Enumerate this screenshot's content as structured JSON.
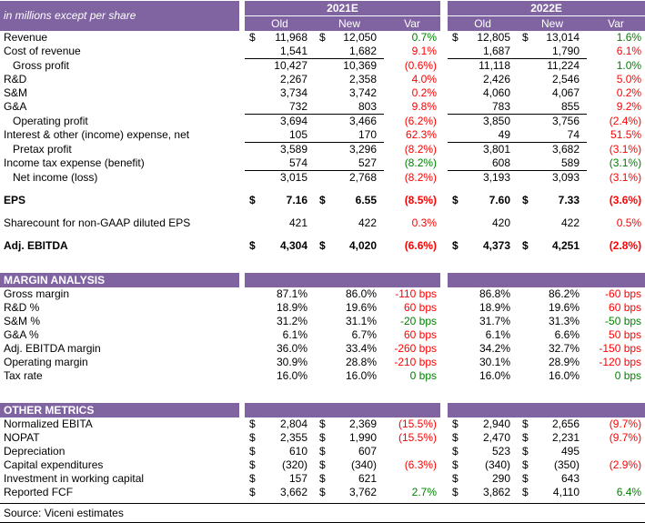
{
  "meta": {
    "units_label": "in millions except per share",
    "currency_symbol": "$",
    "source": "Source: Viceni estimates"
  },
  "columns": {
    "group1_label": "2021E",
    "group2_label": "2022E",
    "sub": [
      "Old",
      "New",
      "Var"
    ]
  },
  "colors": {
    "header_purple": "#8064A2",
    "positive_green": "#008000",
    "negative_red": "#FF0000"
  },
  "sections": [
    {
      "title": null,
      "rows": [
        {
          "label": "Revenue",
          "dollar": true,
          "g1": {
            "old": "11,968",
            "new": "12,050",
            "var": "0.7%",
            "var_color": "green"
          },
          "g2": {
            "old": "12,805",
            "new": "13,014",
            "var": "1.6%",
            "var_color": "green"
          }
        },
        {
          "label": "Cost of revenue",
          "underline": true,
          "g1": {
            "old": "1,541",
            "new": "1,682",
            "var": "9.1%",
            "var_color": "red"
          },
          "g2": {
            "old": "1,687",
            "new": "1,790",
            "var": "6.1%",
            "var_color": "red"
          }
        },
        {
          "label": "Gross profit",
          "indent": true,
          "g1": {
            "old": "10,427",
            "new": "10,369",
            "var": "(0.6%)",
            "var_color": "red"
          },
          "g2": {
            "old": "11,118",
            "new": "11,224",
            "var": "1.0%",
            "var_color": "green"
          }
        },
        {
          "label": "R&D",
          "g1": {
            "old": "2,267",
            "new": "2,358",
            "var": "4.0%",
            "var_color": "red"
          },
          "g2": {
            "old": "2,426",
            "new": "2,546",
            "var": "5.0%",
            "var_color": "red"
          }
        },
        {
          "label": "S&M",
          "g1": {
            "old": "3,734",
            "new": "3,742",
            "var": "0.2%",
            "var_color": "red"
          },
          "g2": {
            "old": "4,060",
            "new": "4,067",
            "var": "0.2%",
            "var_color": "red"
          }
        },
        {
          "label": "G&A",
          "underline": true,
          "g1": {
            "old": "732",
            "new": "803",
            "var": "9.8%",
            "var_color": "red"
          },
          "g2": {
            "old": "783",
            "new": "855",
            "var": "9.2%",
            "var_color": "red"
          }
        },
        {
          "label": "Operating profit",
          "indent": true,
          "g1": {
            "old": "3,694",
            "new": "3,466",
            "var": "(6.2%)",
            "var_color": "red"
          },
          "g2": {
            "old": "3,850",
            "new": "3,756",
            "var": "(2.4%)",
            "var_color": "red"
          }
        },
        {
          "label": "Interest & other (income) expense, net",
          "underline": true,
          "g1": {
            "old": "105",
            "new": "170",
            "var": "62.3%",
            "var_color": "red"
          },
          "g2": {
            "old": "49",
            "new": "74",
            "var": "51.5%",
            "var_color": "red"
          }
        },
        {
          "label": "Pretax profit",
          "indent": true,
          "g1": {
            "old": "3,589",
            "new": "3,296",
            "var": "(8.2%)",
            "var_color": "red"
          },
          "g2": {
            "old": "3,801",
            "new": "3,682",
            "var": "(3.1%)",
            "var_color": "red"
          }
        },
        {
          "label": "Income tax expense (benefit)",
          "underline": true,
          "g1": {
            "old": "574",
            "new": "527",
            "var": "(8.2%)",
            "var_color": "green"
          },
          "g2": {
            "old": "608",
            "new": "589",
            "var": "(3.1%)",
            "var_color": "green"
          }
        },
        {
          "label": "Net income (loss)",
          "indent": true,
          "g1": {
            "old": "3,015",
            "new": "2,768",
            "var": "(8.2%)",
            "var_color": "red"
          },
          "g2": {
            "old": "3,193",
            "new": "3,093",
            "var": "(3.1%)",
            "var_color": "red"
          }
        },
        {
          "blank": true
        },
        {
          "label": "EPS",
          "bold": true,
          "dollar": true,
          "g1": {
            "old": "7.16",
            "new": "6.55",
            "var": "(8.5%)",
            "var_color": "red"
          },
          "g2": {
            "old": "7.60",
            "new": "7.33",
            "var": "(3.6%)",
            "var_color": "red"
          }
        },
        {
          "blank": true
        },
        {
          "label": "Sharecount for non-GAAP diluted EPS",
          "g1": {
            "old": "421",
            "new": "422",
            "var": "0.3%",
            "var_color": "red"
          },
          "g2": {
            "old": "420",
            "new": "422",
            "var": "0.5%",
            "var_color": "red"
          }
        },
        {
          "blank": true
        },
        {
          "label": "Adj. EBITDA",
          "bold": true,
          "dollar": true,
          "g1": {
            "old": "4,304",
            "new": "4,020",
            "var": "(6.6%)",
            "var_color": "red"
          },
          "g2": {
            "old": "4,373",
            "new": "4,251",
            "var": "(2.8%)",
            "var_color": "red"
          }
        }
      ]
    },
    {
      "title": "MARGIN ANALYSIS",
      "rows": [
        {
          "label": "Gross margin",
          "g1": {
            "old": "87.1%",
            "new": "86.0%",
            "var": "-110 bps",
            "var_color": "red"
          },
          "g2": {
            "old": "86.8%",
            "new": "86.2%",
            "var": "-60 bps",
            "var_color": "red"
          }
        },
        {
          "label": "R&D %",
          "g1": {
            "old": "18.9%",
            "new": "19.6%",
            "var": "60 bps",
            "var_color": "red"
          },
          "g2": {
            "old": "18.9%",
            "new": "19.6%",
            "var": "60 bps",
            "var_color": "red"
          }
        },
        {
          "label": "S&M %",
          "g1": {
            "old": "31.2%",
            "new": "31.1%",
            "var": "-20 bps",
            "var_color": "green"
          },
          "g2": {
            "old": "31.7%",
            "new": "31.3%",
            "var": "-50 bps",
            "var_color": "green"
          }
        },
        {
          "label": "G&A %",
          "g1": {
            "old": "6.1%",
            "new": "6.7%",
            "var": "60 bps",
            "var_color": "red"
          },
          "g2": {
            "old": "6.1%",
            "new": "6.6%",
            "var": "50 bps",
            "var_color": "red"
          }
        },
        {
          "label": "Adj. EBITDA margin",
          "g1": {
            "old": "36.0%",
            "new": "33.4%",
            "var": "-260 bps",
            "var_color": "red"
          },
          "g2": {
            "old": "34.2%",
            "new": "32.7%",
            "var": "-150 bps",
            "var_color": "red"
          }
        },
        {
          "label": "Operating margin",
          "g1": {
            "old": "30.9%",
            "new": "28.8%",
            "var": "-210 bps",
            "var_color": "red"
          },
          "g2": {
            "old": "30.1%",
            "new": "28.9%",
            "var": "-120 bps",
            "var_color": "red"
          }
        },
        {
          "label": "Tax rate",
          "g1": {
            "old": "16.0%",
            "new": "16.0%",
            "var": "0 bps",
            "var_color": "green"
          },
          "g2": {
            "old": "16.0%",
            "new": "16.0%",
            "var": "0 bps",
            "var_color": "green"
          }
        }
      ]
    },
    {
      "title": "OTHER METRICS",
      "rows": [
        {
          "label": "Normalized EBITA",
          "dollar": true,
          "g1": {
            "old": "2,804",
            "new": "2,369",
            "var": "(15.5%)",
            "var_color": "red"
          },
          "g2": {
            "old": "2,940",
            "new": "2,656",
            "var": "(9.7%)",
            "var_color": "red"
          }
        },
        {
          "label": "NOPAT",
          "dollar": true,
          "g1": {
            "old": "2,355",
            "new": "1,990",
            "var": "(15.5%)",
            "var_color": "red"
          },
          "g2": {
            "old": "2,470",
            "new": "2,231",
            "var": "(9.7%)",
            "var_color": "red"
          }
        },
        {
          "label": "Depreciation",
          "dollar": true,
          "g1": {
            "old": "610",
            "new": "607",
            "var": "",
            "var_color": null
          },
          "g2": {
            "old": "523",
            "new": "495",
            "var": "",
            "var_color": null
          }
        },
        {
          "label": "Capital expenditures",
          "dollar": true,
          "g1": {
            "old": "(320)",
            "new": "(340)",
            "var": "(6.3%)",
            "var_color": "red"
          },
          "g2": {
            "old": "(340)",
            "new": "(350)",
            "var": "(2.9%)",
            "var_color": "red"
          }
        },
        {
          "label": "Investment in working capital",
          "dollar": true,
          "g1": {
            "old": "157",
            "new": "621",
            "var": "",
            "var_color": null
          },
          "g2": {
            "old": "290",
            "new": "643",
            "var": "",
            "var_color": null
          }
        },
        {
          "label": "Reported FCF",
          "dollar": true,
          "g1": {
            "old": "3,662",
            "new": "3,762",
            "var": "2.7%",
            "var_color": "green"
          },
          "g2": {
            "old": "3,862",
            "new": "4,110",
            "var": "6.4%",
            "var_color": "green"
          }
        }
      ]
    }
  ]
}
